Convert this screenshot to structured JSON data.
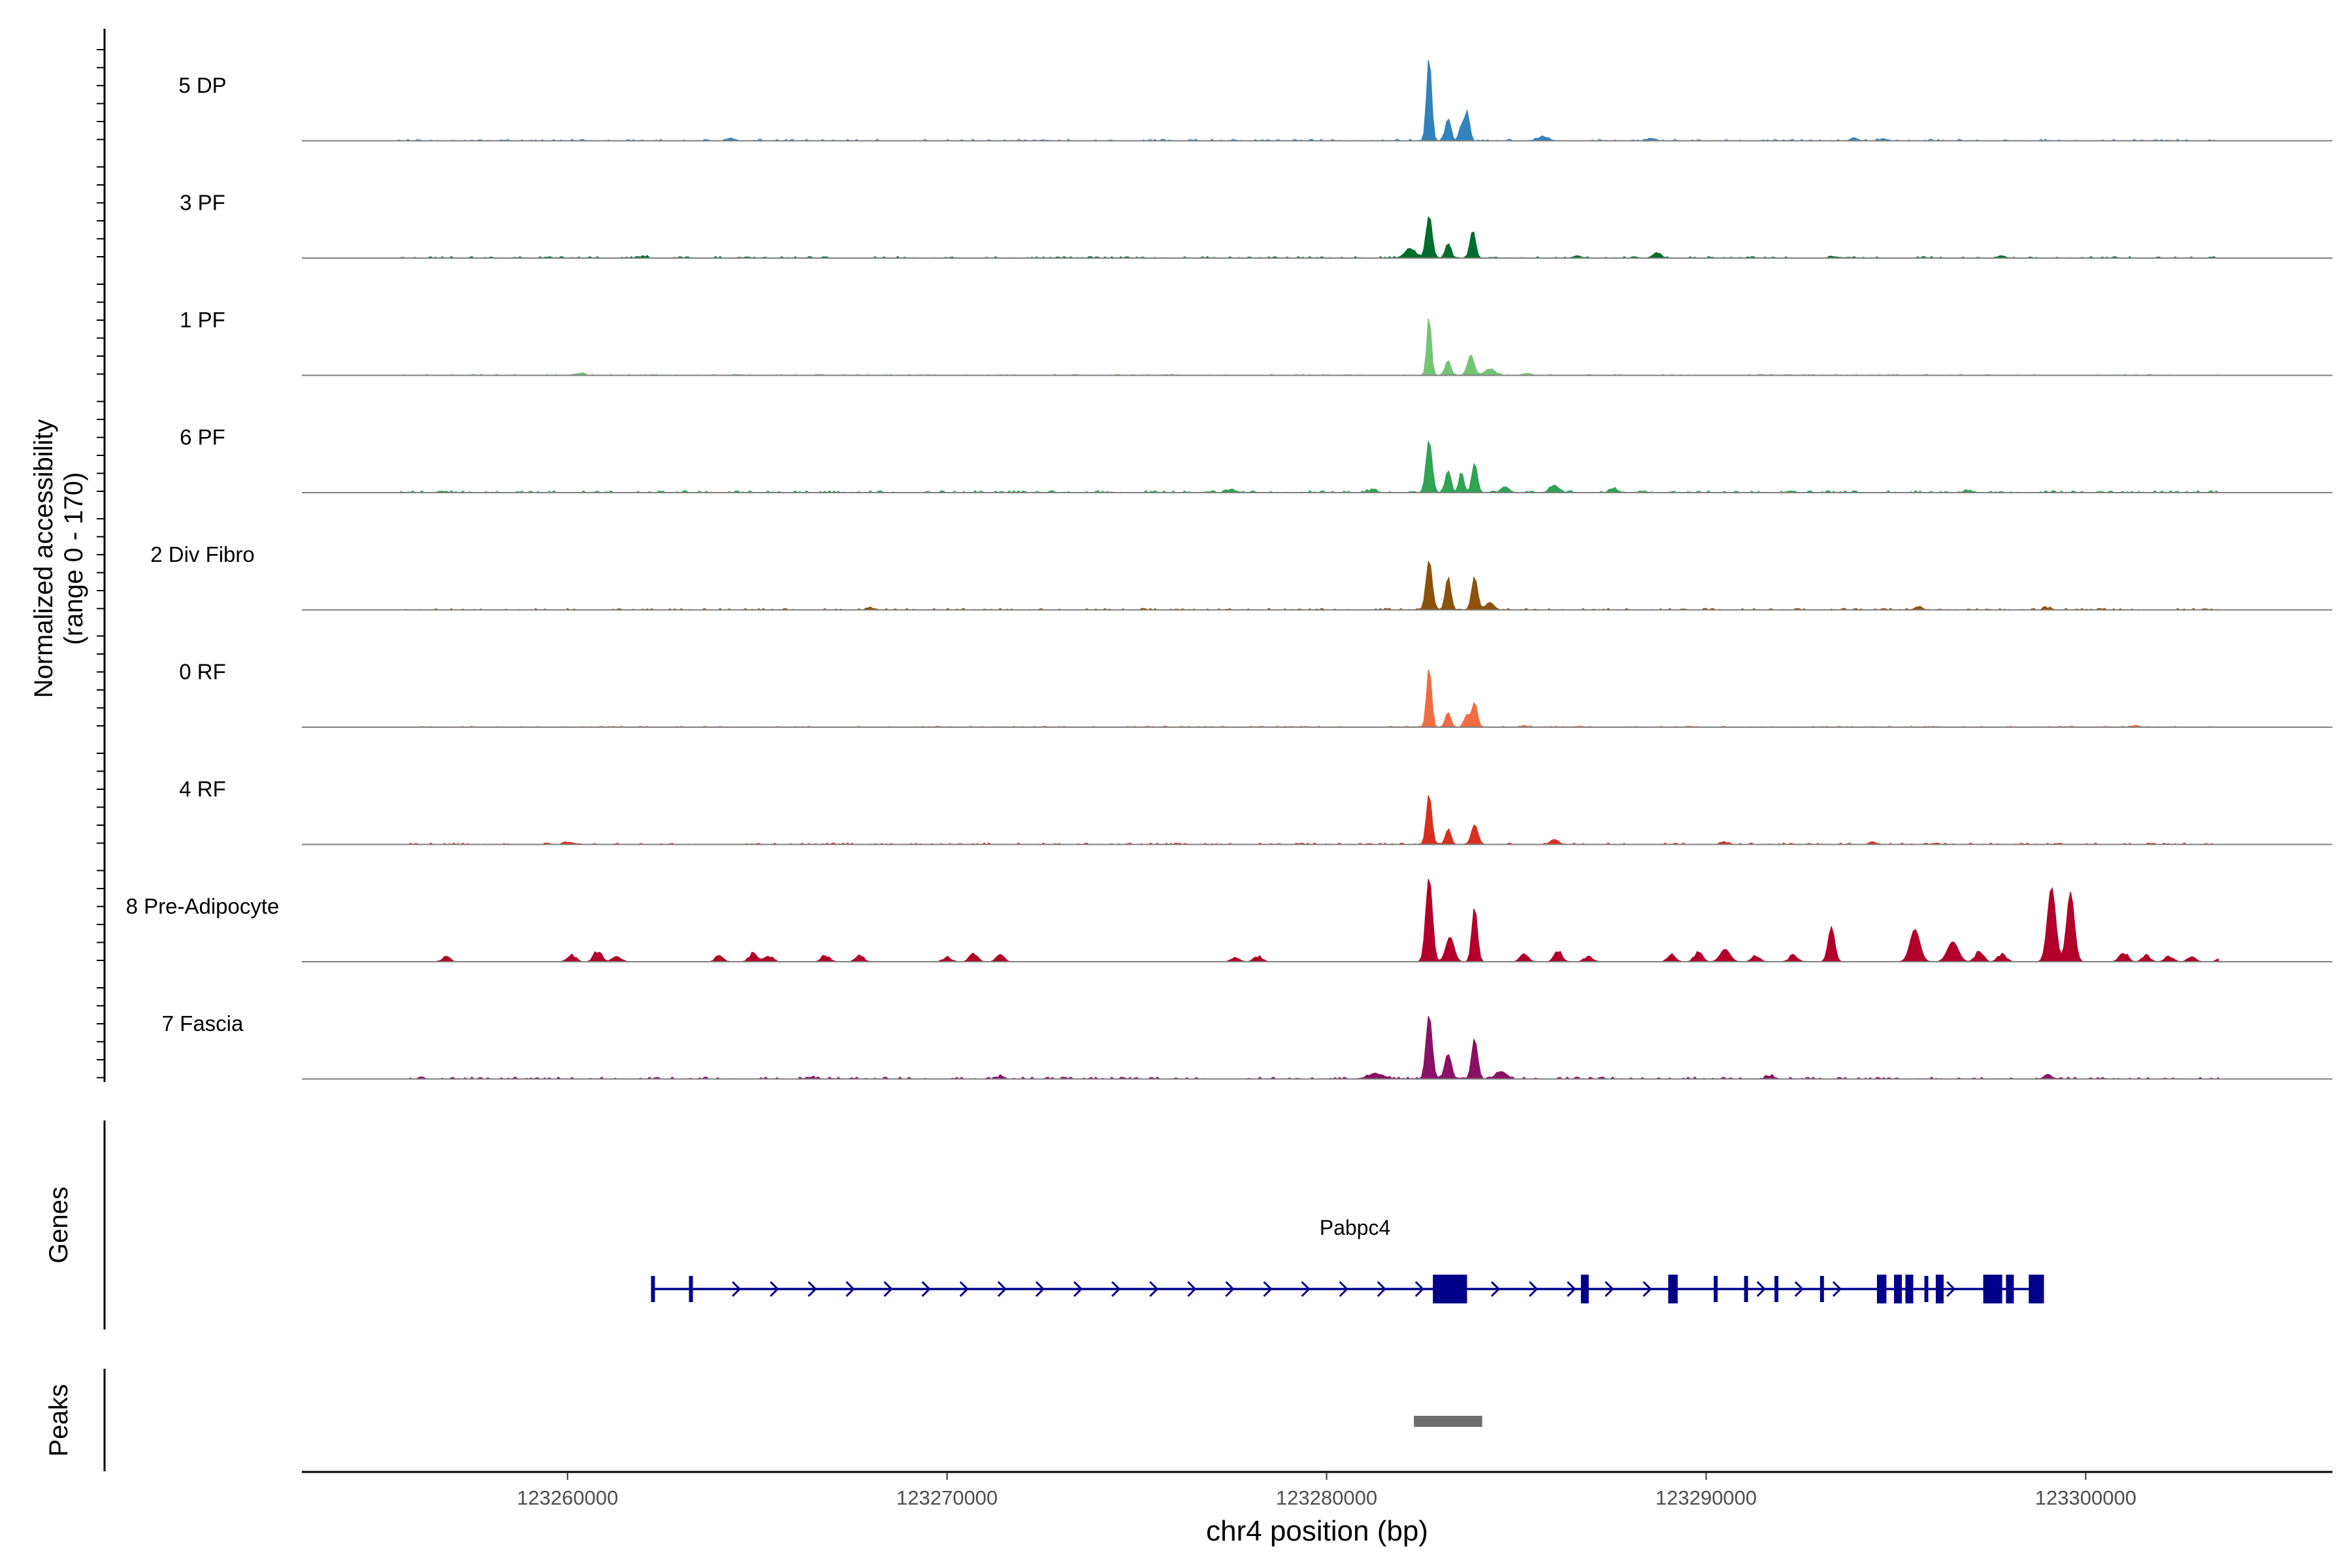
{
  "chart_data": {
    "type": "area",
    "title": "",
    "ylabel_line1": "Normalized accessibility",
    "ylabel_line2": "(range 0 - 170)",
    "yrange": [
      0,
      170
    ],
    "xlabel": "chr4 position (bp)",
    "xlim": [
      123253000,
      123306500
    ],
    "xticks": [
      123260000,
      123270000,
      123280000,
      123290000,
      123300000
    ],
    "xtick_labels": [
      "123260000",
      "123270000",
      "123280000",
      "123290000",
      "123300000"
    ],
    "series": [
      {
        "name": "5 DP",
        "color": "#3182bd",
        "peaks": [
          [
            123282700,
            170,
            90
          ],
          [
            123283200,
            45,
            100
          ],
          [
            123283700,
            60,
            90
          ],
          [
            123283550,
            30,
            80
          ],
          [
            123285700,
            8,
            200
          ]
        ],
        "bg": 3,
        "scattered": [
          [
            123264300,
            6
          ],
          [
            123293900,
            6
          ],
          [
            123294700,
            5
          ],
          [
            123288500,
            5
          ]
        ]
      },
      {
        "name": "3 PF",
        "color": "#006d2c",
        "peaks": [
          [
            123282700,
            85,
            110
          ],
          [
            123283200,
            30,
            100
          ],
          [
            123283850,
            55,
            100
          ],
          [
            123282200,
            18,
            200
          ],
          [
            123288700,
            10,
            150
          ]
        ],
        "bg": 3,
        "scattered": [
          [
            123262000,
            4
          ],
          [
            123286600,
            5
          ],
          [
            123293400,
            4
          ],
          [
            123297800,
            5
          ]
        ]
      },
      {
        "name": "1 PF",
        "color": "#74c476",
        "peaks": [
          [
            123282700,
            120,
            80
          ],
          [
            123283200,
            30,
            100
          ],
          [
            123283800,
            40,
            120
          ],
          [
            123284300,
            12,
            200
          ]
        ],
        "bg": 2,
        "scattered": [
          [
            123260300,
            6
          ],
          [
            123285300,
            5
          ]
        ]
      },
      {
        "name": "6 PF",
        "color": "#31a354",
        "peaks": [
          [
            123282700,
            105,
            110
          ],
          [
            123283200,
            45,
            100
          ],
          [
            123283550,
            40,
            90
          ],
          [
            123283900,
            60,
            100
          ],
          [
            123286000,
            15,
            160
          ],
          [
            123284700,
            12,
            150
          ]
        ],
        "bg": 4,
        "scattered": [
          [
            123277500,
            10
          ],
          [
            123281200,
            8
          ],
          [
            123287600,
            8
          ],
          [
            123296900,
            6
          ]
        ]
      },
      {
        "name": "2 Div Fibro",
        "color": "#8c510a",
        "peaks": [
          [
            123282700,
            100,
            110
          ],
          [
            123283200,
            65,
            100
          ],
          [
            123283900,
            65,
            110
          ],
          [
            123284300,
            15,
            150
          ]
        ],
        "bg": 3,
        "scattered": [
          [
            123268000,
            5
          ],
          [
            123295600,
            7
          ],
          [
            123299000,
            5
          ]
        ]
      },
      {
        "name": "0 RF",
        "color": "#f16c42",
        "peaks": [
          [
            123282700,
            120,
            90
          ],
          [
            123283200,
            30,
            100
          ],
          [
            123283700,
            25,
            100
          ],
          [
            123283900,
            50,
            100
          ]
        ],
        "bg": 2,
        "scattered": [
          [
            123285200,
            4
          ],
          [
            123301300,
            4
          ]
        ]
      },
      {
        "name": "4 RF",
        "color": "#d7301f",
        "peaks": [
          [
            123282700,
            100,
            100
          ],
          [
            123283200,
            30,
            100
          ],
          [
            123283900,
            40,
            120
          ],
          [
            123286000,
            10,
            150
          ]
        ],
        "bg": 3,
        "scattered": [
          [
            123260000,
            6
          ],
          [
            123290500,
            6
          ],
          [
            123294400,
            5
          ]
        ]
      },
      {
        "name": "8 Pre-Adipocyte",
        "color": "#b2002a",
        "peaks": [
          [
            123282700,
            170,
            120
          ],
          [
            123283900,
            110,
            100
          ],
          [
            123283250,
            50,
            150
          ],
          [
            123299100,
            150,
            150
          ],
          [
            123299600,
            140,
            140
          ],
          [
            123295500,
            65,
            180
          ],
          [
            123293300,
            70,
            120
          ],
          [
            123296500,
            40,
            200
          ],
          [
            123290500,
            25,
            180
          ]
        ],
        "bg": 0,
        "scattered": [
          [
            123256800,
            12
          ],
          [
            123260100,
            20
          ],
          [
            123260800,
            30
          ],
          [
            123261300,
            15
          ],
          [
            123264000,
            15
          ],
          [
            123264900,
            25
          ],
          [
            123265300,
            15
          ],
          [
            123266800,
            18
          ],
          [
            123267700,
            15
          ],
          [
            123270000,
            12
          ],
          [
            123270700,
            22
          ],
          [
            123271400,
            15
          ],
          [
            123277600,
            12
          ],
          [
            123278200,
            15
          ],
          [
            123285200,
            18
          ],
          [
            123286100,
            25
          ],
          [
            123286900,
            15
          ],
          [
            123289100,
            18
          ],
          [
            123289800,
            25
          ],
          [
            123291300,
            15
          ],
          [
            123292300,
            18
          ],
          [
            123297200,
            25
          ],
          [
            123297800,
            20
          ],
          [
            123301000,
            25
          ],
          [
            123301600,
            15
          ],
          [
            123302200,
            15
          ],
          [
            123302800,
            12
          ],
          [
            123303600,
            12
          ]
        ]
      },
      {
        "name": "7 Fascia",
        "color": "#8a1165",
        "peaks": [
          [
            123282700,
            130,
            110
          ],
          [
            123283200,
            50,
            120
          ],
          [
            123283900,
            80,
            110
          ],
          [
            123284600,
            15,
            200
          ],
          [
            123281300,
            10,
            300
          ]
        ],
        "bg": 4,
        "scattered": [
          [
            123266400,
            6
          ],
          [
            123271400,
            6
          ],
          [
            123291700,
            8
          ],
          [
            123299000,
            8
          ]
        ]
      }
    ],
    "genes_label": "Genes",
    "peaks_label": "Peaks",
    "gene": {
      "name": "Pabpc4",
      "start": 123262200,
      "end": 123298900,
      "strand": "+",
      "exons": [
        [
          123262200,
          123262300,
          "thin"
        ],
        [
          123263200,
          123263300,
          "thin"
        ],
        [
          123282800,
          123283700,
          "thick"
        ],
        [
          123286700,
          123286850,
          "thick"
        ],
        [
          123289000,
          123289250,
          "thick"
        ],
        [
          123290200,
          123290300,
          "thin"
        ],
        [
          123291000,
          123291100,
          "thin"
        ],
        [
          123291800,
          123291900,
          "thin"
        ],
        [
          123293000,
          123293100,
          "thin"
        ],
        [
          123294500,
          123294750,
          "thick"
        ],
        [
          123294950,
          123295100,
          "thick"
        ],
        [
          123295250,
          123295400,
          "thick"
        ],
        [
          123295750,
          123295850,
          "thin"
        ],
        [
          123296050,
          123296200,
          "thick"
        ],
        [
          123297300,
          123297800,
          "thick"
        ],
        [
          123297900,
          123298100,
          "thick"
        ],
        [
          123298500,
          123298900,
          "thick"
        ]
      ]
    },
    "peak_regions": [
      [
        123282300,
        123284100
      ]
    ]
  }
}
